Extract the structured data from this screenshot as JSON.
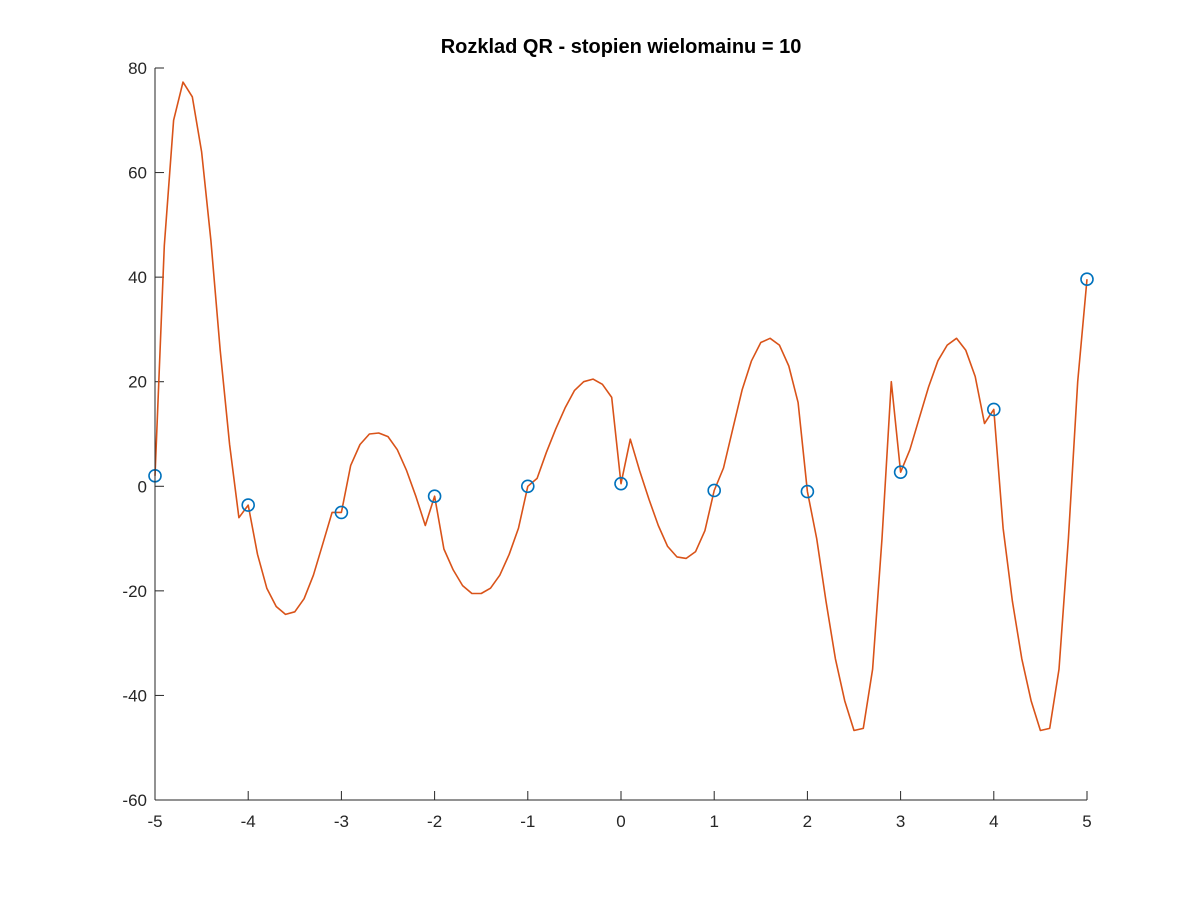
{
  "chart_data": {
    "type": "line",
    "title": "Rozklad QR - stopien wielomainu = 10",
    "xlabel": "",
    "ylabel": "",
    "xlim": [
      -5,
      5
    ],
    "ylim": [
      -60,
      80
    ],
    "grid": false,
    "xticks": [
      -5,
      -4,
      -3,
      -2,
      -1,
      0,
      1,
      2,
      3,
      4,
      5
    ],
    "yticks": [
      -60,
      -40,
      -20,
      0,
      20,
      40,
      60,
      80
    ],
    "xtick_labels": [
      "-5",
      "-4",
      "-3",
      "-2",
      "-1",
      "0",
      "1",
      "2",
      "3",
      "4",
      "5"
    ],
    "ytick_labels": [
      "-60",
      "-40",
      "-20",
      "0",
      "20",
      "40",
      "60",
      "80"
    ],
    "series": [
      {
        "kind": "scatter",
        "marker": "circle",
        "color": "#0072BD",
        "x": [
          -5,
          -4,
          -3,
          -2,
          -1,
          0,
          1,
          2,
          3,
          4,
          5
        ],
        "y": [
          2.0,
          -3.6,
          -5.0,
          -1.9,
          0.0,
          0.5,
          -0.8,
          -1.0,
          2.7,
          14.7,
          39.6
        ]
      },
      {
        "kind": "line",
        "color": "#D95319",
        "x": [
          -5,
          -4.9,
          -4.8,
          -4.7,
          -4.6,
          -4.5,
          -4.4,
          -4.3,
          -4.2,
          -4.1,
          -4.0,
          -3.9,
          -3.8,
          -3.7,
          -3.6,
          -3.5,
          -3.4,
          -3.3,
          -3.2,
          -3.1,
          -3.0,
          -2.9,
          -2.8,
          -2.7,
          -2.6,
          -2.5,
          -2.4,
          -2.3,
          -2.2,
          -2.1,
          -2.0,
          -1.9,
          -1.8,
          -1.7,
          -1.6,
          -1.5,
          -1.4,
          -1.3,
          -1.2,
          -1.1,
          -1.0,
          -0.9,
          -0.8,
          -0.7,
          -0.6,
          -0.5,
          -0.4,
          -0.3,
          -0.2,
          -0.1,
          0.0,
          0.1,
          0.2,
          0.3,
          0.4,
          0.5,
          0.6,
          0.7,
          0.8,
          0.9,
          1.0,
          1.1,
          1.2,
          1.3,
          1.4,
          1.5,
          1.6,
          1.7,
          1.8,
          1.9,
          2.0,
          2.1,
          2.2,
          2.3,
          2.4,
          2.5,
          2.6,
          2.7,
          2.8,
          2.9,
          3.0,
          3.1,
          3.2,
          3.3,
          3.4,
          3.5,
          3.6,
          3.7,
          3.8,
          3.9,
          4.0,
          4.1,
          4.2,
          4.3,
          4.4,
          4.5,
          4.6,
          4.7,
          4.8,
          4.9,
          5.0
        ],
        "y": [
          2.0,
          46.0,
          70.0,
          77.3,
          74.5,
          64.0,
          47.0,
          26.0,
          8.0,
          -6.0,
          -3.6,
          -13.0,
          -19.5,
          -23.0,
          -24.5,
          -24.0,
          -21.5,
          -17.0,
          -11.0,
          -5.0,
          -5.0,
          4.0,
          8.0,
          10.0,
          10.2,
          9.5,
          7.0,
          3.0,
          -2.0,
          -7.5,
          -1.9,
          -12.0,
          -16.0,
          -19.0,
          -20.5,
          -20.5,
          -19.5,
          -17.0,
          -13.0,
          -8.0,
          0.0,
          1.5,
          6.5,
          11.0,
          15.0,
          18.3,
          20.0,
          20.5,
          19.5,
          17.0,
          0.5,
          9.0,
          3.0,
          -2.5,
          -7.5,
          -11.5,
          -13.5,
          -13.8,
          -12.5,
          -8.5,
          -0.8,
          3.5,
          11.0,
          18.5,
          24.0,
          27.5,
          28.3,
          27.0,
          23.0,
          16.0,
          -1.0,
          -10.0,
          -22.0,
          -33.0,
          -41.0,
          -46.7,
          -46.3,
          -35.0,
          -10.0,
          20.0,
          2.7,
          7.0,
          13.0,
          19.0,
          24.0,
          27.0,
          28.3,
          26.0,
          21.0,
          12.0,
          14.7,
          -8.0,
          -22.0,
          -33.0,
          -41.0,
          -46.7,
          -46.3,
          -35.0,
          -10.0,
          20.0,
          39.6
        ]
      }
    ]
  }
}
